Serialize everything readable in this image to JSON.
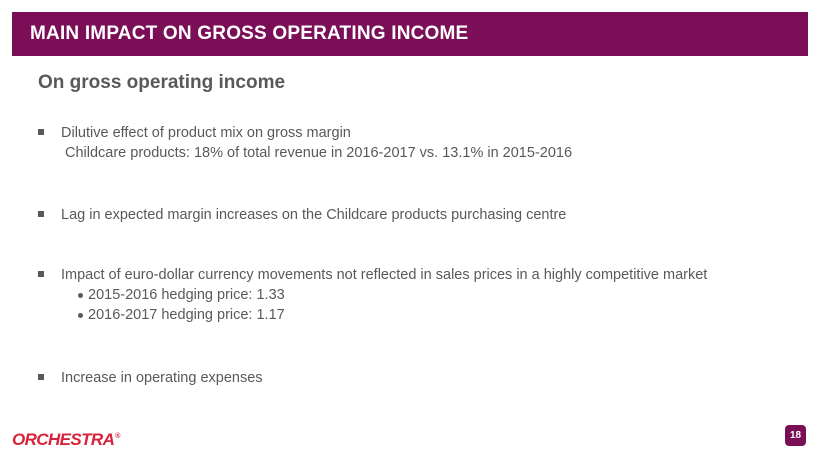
{
  "header": {
    "title": "MAIN IMPACT ON GROSS OPERATING INCOME",
    "color": "#7a0f57"
  },
  "subtitle": "On gross operating income",
  "bullets": [
    {
      "text": "Dilutive effect of product mix on gross margin",
      "detail": "Childcare products: 18% of total revenue in 2016-2017 vs. 13.1% in 2015-2016"
    },
    {
      "text": "Lag in expected margin increases on the Childcare products purchasing centre"
    },
    {
      "text": "Impact of euro-dollar currency movements not reflected in sales prices in a highly competitive market",
      "subitems": [
        "2015-2016 hedging price: 1.33",
        "2016-2017 hedging price: 1.17"
      ]
    },
    {
      "text": "Increase in operating expenses"
    }
  ],
  "footer": {
    "logo_text": "ORCHESTRA",
    "logo_color": "#d8213a",
    "page_number": "18"
  }
}
